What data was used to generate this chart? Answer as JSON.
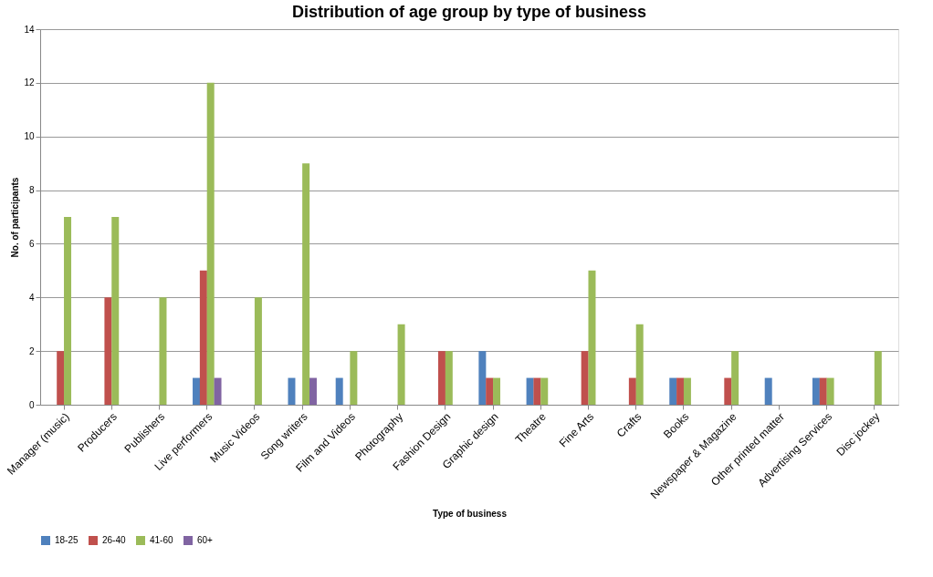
{
  "chart_data": {
    "type": "bar",
    "title": "Distribution of age group by type of business",
    "xlabel": "Type of business",
    "ylabel": "No. of participants",
    "categories": [
      "Manager (music)",
      "Producers",
      "Publishers",
      "Live performers",
      "Music Videos",
      "Song writers",
      "Film and Videos",
      "Photography",
      "Fashion Design",
      "Graphic design",
      "Theatre",
      "Fine Arts",
      "Crafts",
      "Books",
      "Newspaper & Magazine",
      "Other printed matter",
      "Advertising Services",
      "Disc jockey"
    ],
    "series": [
      {
        "name": "18-25",
        "color": "#4f81bd",
        "values": [
          null,
          null,
          null,
          1,
          null,
          1,
          1,
          null,
          null,
          2,
          1,
          null,
          null,
          1,
          null,
          1,
          1,
          null
        ]
      },
      {
        "name": "26-40",
        "color": "#c0504d",
        "values": [
          2,
          4,
          null,
          5,
          null,
          null,
          null,
          null,
          2,
          1,
          1,
          2,
          1,
          1,
          1,
          null,
          1,
          null
        ]
      },
      {
        "name": "41-60",
        "color": "#9bbb59",
        "values": [
          7,
          7,
          4,
          12,
          4,
          9,
          2,
          3,
          2,
          1,
          1,
          5,
          3,
          1,
          2,
          null,
          1,
          2
        ]
      },
      {
        "name": "60+",
        "color": "#8064a2",
        "values": [
          null,
          null,
          null,
          1,
          null,
          1,
          null,
          null,
          null,
          null,
          null,
          null,
          null,
          null,
          null,
          null,
          null,
          null
        ]
      }
    ],
    "ylim": [
      0,
      14
    ],
    "yticks": [
      0,
      2,
      4,
      6,
      8,
      10,
      12,
      14
    ],
    "grid": "y",
    "legend": "bottom"
  }
}
